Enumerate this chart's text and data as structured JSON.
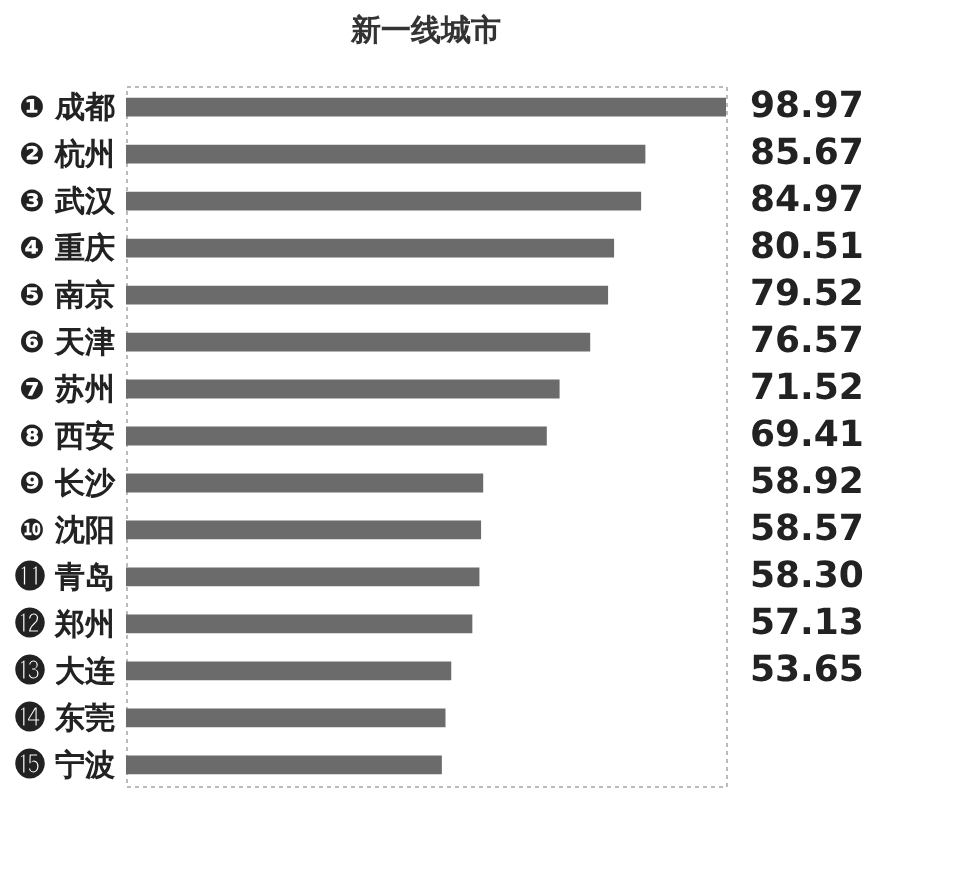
{
  "chart_data": {
    "type": "bar",
    "orientation": "horizontal",
    "title": "新一线城市",
    "categories": [
      "❶ 成都",
      "❷ 杭州",
      "❸ 武汉",
      "❹ 重庆",
      "❺ 南京",
      "❻ 天津",
      "❼ 苏州",
      "❽ 西安",
      "❾ 长沙",
      "❿ 沈阳",
      "⓫ 青岛",
      "⓬ 郑州",
      "⓭ 大连",
      "⓮ 东莞",
      "⓯ 宁波"
    ],
    "values": [
      98.97,
      85.67,
      84.97,
      80.51,
      79.52,
      76.57,
      71.52,
      69.41,
      58.92,
      58.57,
      58.3,
      57.13,
      53.65,
      52.7,
      52.1
    ],
    "value_labels": [
      "98.97",
      "85.67",
      "84.97",
      "80.51",
      "79.52",
      "76.57",
      "71.52",
      "69.41",
      "58.92",
      "58.57",
      "58.30",
      "57.13",
      "53.65",
      null,
      null
    ],
    "color": "#6b6b6b"
  }
}
